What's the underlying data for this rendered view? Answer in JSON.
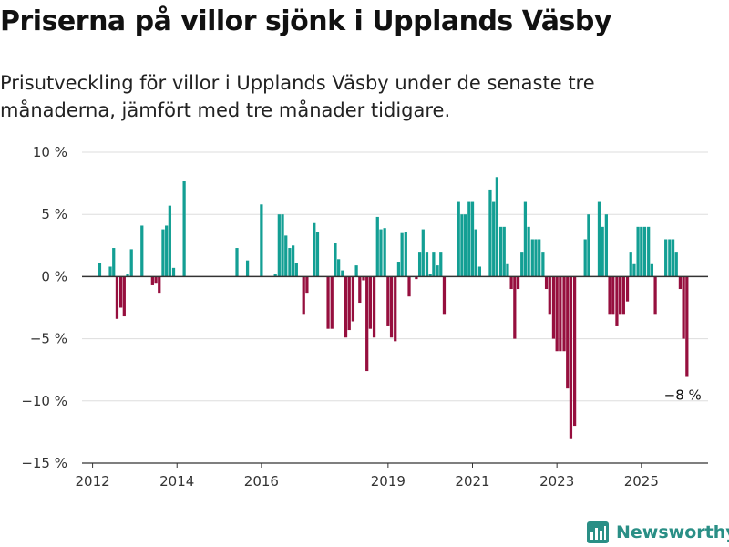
{
  "header": {
    "title": "Priserna på villor sjönk i Upplands Väsby",
    "subtitle": "Prisutveckling för villor i Upplands Väsby under de senaste tre månaderna, jämfört med tre månader tidigare."
  },
  "brand": {
    "name": "Newsworthy",
    "icon": "bar-chart-icon"
  },
  "colors": {
    "positive": "#139f94",
    "negative": "#960f3e",
    "grid": "#dddddd",
    "zero_line": "#333333"
  },
  "chart_data": {
    "type": "bar",
    "title": "Priserna på villor sjönk i Upplands Väsby",
    "subtitle": "Prisutveckling för villor i Upplands Väsby under de senaste tre månaderna, jämfört med tre månader tidigare.",
    "xlabel": "",
    "ylabel": "",
    "ylim": [
      -15,
      10
    ],
    "y_ticks": [
      10,
      5,
      0,
      -5,
      -10,
      -15
    ],
    "y_tick_labels": [
      "10 %",
      "5 %",
      "0 %",
      "−5 %",
      "−10 %",
      "−15 %"
    ],
    "x_ticks": [
      2012,
      2014,
      2016,
      2019,
      2021,
      2023,
      2025
    ],
    "x_tick_labels": [
      "2012",
      "2014",
      "2016",
      "2019",
      "2021",
      "2023",
      "2025"
    ],
    "grid": true,
    "annotation": {
      "text": "−8 %",
      "x": 2025.58,
      "y": -8
    },
    "series": [
      {
        "values": [
          [
            2012.17,
            1.1
          ],
          [
            2012.42,
            0.8
          ],
          [
            2012.5,
            2.3
          ],
          [
            2012.58,
            -3.4
          ],
          [
            2012.67,
            -2.5
          ],
          [
            2012.75,
            -3.2
          ],
          [
            2012.83,
            0.2
          ],
          [
            2012.92,
            2.2
          ],
          [
            2013.17,
            4.1
          ],
          [
            2013.42,
            -0.7
          ],
          [
            2013.5,
            -0.5
          ],
          [
            2013.58,
            -1.3
          ],
          [
            2013.67,
            3.8
          ],
          [
            2013.75,
            4.1
          ],
          [
            2013.83,
            5.7
          ],
          [
            2013.92,
            0.7
          ],
          [
            2014.17,
            7.7
          ],
          [
            2015.42,
            2.3
          ],
          [
            2015.67,
            1.3
          ],
          [
            2016.0,
            5.8
          ],
          [
            2016.33,
            0.2
          ],
          [
            2016.42,
            5.0
          ],
          [
            2016.5,
            5.0
          ],
          [
            2016.58,
            3.3
          ],
          [
            2016.67,
            2.3
          ],
          [
            2016.75,
            2.5
          ],
          [
            2016.83,
            1.1
          ],
          [
            2017.0,
            -3.0
          ],
          [
            2017.08,
            -1.3
          ],
          [
            2017.25,
            4.3
          ],
          [
            2017.33,
            3.6
          ],
          [
            2017.58,
            -4.2
          ],
          [
            2017.67,
            -4.2
          ],
          [
            2017.75,
            2.7
          ],
          [
            2017.83,
            1.4
          ],
          [
            2017.92,
            0.5
          ],
          [
            2018.0,
            -4.9
          ],
          [
            2018.08,
            -4.3
          ],
          [
            2018.17,
            -3.6
          ],
          [
            2018.25,
            0.9
          ],
          [
            2018.33,
            -2.1
          ],
          [
            2018.42,
            -0.3
          ],
          [
            2018.5,
            -7.6
          ],
          [
            2018.58,
            -4.2
          ],
          [
            2018.67,
            -4.9
          ],
          [
            2018.75,
            4.8
          ],
          [
            2018.83,
            3.8
          ],
          [
            2018.92,
            3.9
          ],
          [
            2019.0,
            -4.0
          ],
          [
            2019.08,
            -4.9
          ],
          [
            2019.17,
            -5.2
          ],
          [
            2019.25,
            1.2
          ],
          [
            2019.33,
            3.5
          ],
          [
            2019.42,
            3.6
          ],
          [
            2019.5,
            -1.6
          ],
          [
            2019.67,
            -0.2
          ],
          [
            2019.75,
            2.0
          ],
          [
            2019.83,
            3.8
          ],
          [
            2019.92,
            2.0
          ],
          [
            2020.0,
            0.2
          ],
          [
            2020.08,
            2.0
          ],
          [
            2020.17,
            0.9
          ],
          [
            2020.25,
            2.0
          ],
          [
            2020.33,
            -3.0
          ],
          [
            2020.67,
            6.0
          ],
          [
            2020.75,
            5.0
          ],
          [
            2020.83,
            5.0
          ],
          [
            2020.92,
            6.0
          ],
          [
            2021.0,
            6.0
          ],
          [
            2021.08,
            3.8
          ],
          [
            2021.17,
            0.8
          ],
          [
            2021.42,
            7.0
          ],
          [
            2021.5,
            6.0
          ],
          [
            2021.58,
            8.0
          ],
          [
            2021.67,
            4.0
          ],
          [
            2021.75,
            4.0
          ],
          [
            2021.83,
            1.0
          ],
          [
            2021.92,
            -1.0
          ],
          [
            2022.0,
            -5.0
          ],
          [
            2022.08,
            -1.0
          ],
          [
            2022.17,
            2.0
          ],
          [
            2022.25,
            6.0
          ],
          [
            2022.33,
            4.0
          ],
          [
            2022.42,
            3.0
          ],
          [
            2022.5,
            3.0
          ],
          [
            2022.58,
            3.0
          ],
          [
            2022.67,
            2.0
          ],
          [
            2022.75,
            -1.0
          ],
          [
            2022.83,
            -3.0
          ],
          [
            2022.92,
            -5.0
          ],
          [
            2023.0,
            -6.0
          ],
          [
            2023.08,
            -6.0
          ],
          [
            2023.17,
            -6.0
          ],
          [
            2023.25,
            -9.0
          ],
          [
            2023.33,
            -13.0
          ],
          [
            2023.42,
            -12.0
          ],
          [
            2023.67,
            3.0
          ],
          [
            2023.75,
            5.0
          ],
          [
            2024.0,
            6.0
          ],
          [
            2024.08,
            4.0
          ],
          [
            2024.17,
            5.0
          ],
          [
            2024.25,
            -3.0
          ],
          [
            2024.33,
            -3.0
          ],
          [
            2024.42,
            -4.0
          ],
          [
            2024.5,
            -3.0
          ],
          [
            2024.58,
            -3.0
          ],
          [
            2024.67,
            -2.0
          ],
          [
            2024.75,
            2.0
          ],
          [
            2024.83,
            1.0
          ],
          [
            2024.92,
            4.0
          ],
          [
            2025.0,
            4.0
          ],
          [
            2025.08,
            4.0
          ],
          [
            2025.17,
            4.0
          ],
          [
            2025.25,
            1.0
          ],
          [
            2025.33,
            -3.0
          ],
          [
            2025.58,
            3.0
          ],
          [
            2025.67,
            3.0
          ],
          [
            2025.75,
            3.0
          ],
          [
            2025.83,
            2.0
          ],
          [
            2025.92,
            -1.0
          ],
          [
            2026.0,
            -5.0
          ],
          [
            2026.08,
            -8.0
          ]
        ]
      }
    ]
  }
}
